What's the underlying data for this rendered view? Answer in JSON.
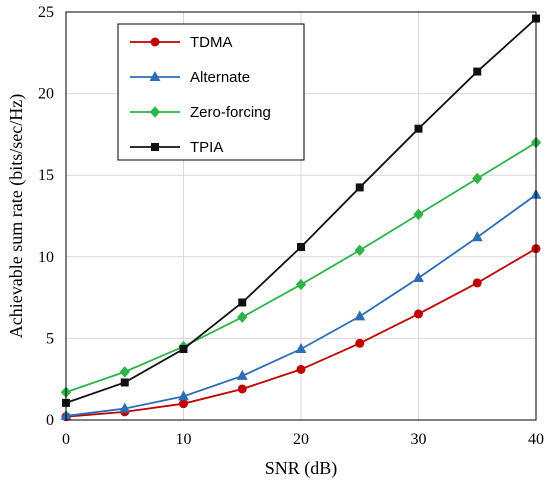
{
  "chart_data": {
    "type": "line",
    "title": "",
    "xlabel": "SNR (dB)",
    "ylabel": "Achievable sum rate (bits/sec/Hz)",
    "xlim": [
      0,
      40
    ],
    "ylim": [
      0,
      25
    ],
    "xticks": [
      0,
      10,
      20,
      30,
      40
    ],
    "yticks": [
      0,
      5,
      10,
      15,
      20,
      25
    ],
    "grid": true,
    "legend_position": "top-left",
    "x": [
      0,
      5,
      10,
      15,
      20,
      25,
      30,
      35,
      40
    ],
    "series": [
      {
        "name": "TDMA",
        "color": "#c00000",
        "marker": "circle",
        "values": [
          0.2,
          0.5,
          1.0,
          1.9,
          3.1,
          4.7,
          6.5,
          8.4,
          10.5
        ]
      },
      {
        "name": "Alternate",
        "color": "#2e6db4",
        "marker": "triangle",
        "values": [
          0.25,
          0.7,
          1.45,
          2.7,
          4.35,
          6.35,
          8.7,
          11.2,
          13.8
        ]
      },
      {
        "name": "Zero-forcing",
        "color": "#2fb34a",
        "marker": "diamond",
        "values": [
          1.7,
          2.95,
          4.5,
          6.3,
          8.3,
          10.4,
          12.6,
          14.8,
          17.0
        ]
      },
      {
        "name": "TPIA",
        "color": "#111111",
        "marker": "square",
        "values": [
          1.05,
          2.3,
          4.35,
          7.2,
          10.6,
          14.25,
          17.85,
          21.35,
          24.6
        ]
      }
    ]
  }
}
